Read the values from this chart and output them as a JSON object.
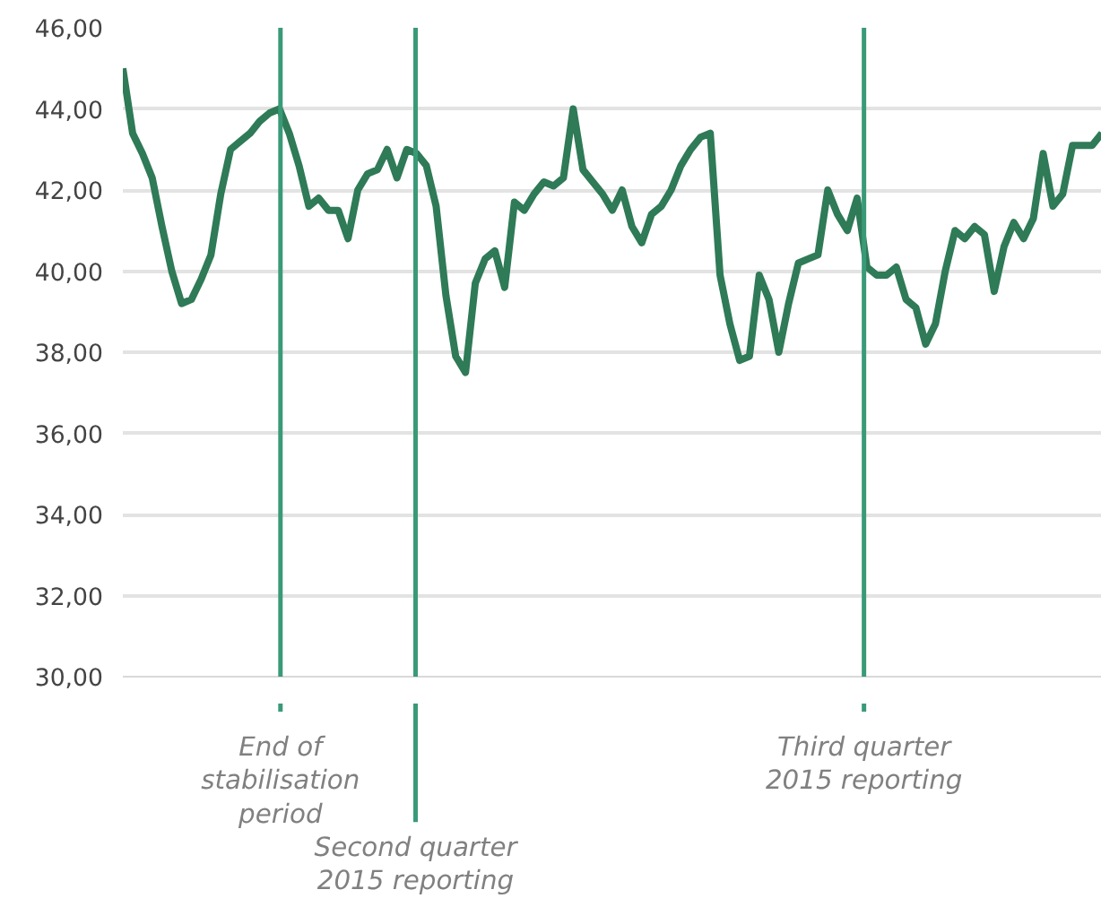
{
  "chart_data": {
    "type": "line",
    "categories": [
      null,
      null,
      null,
      null,
      null,
      null,
      null,
      null,
      null,
      null,
      null,
      null,
      null,
      null,
      null,
      null,
      null,
      null,
      null,
      null,
      null,
      null,
      null,
      null,
      null,
      null,
      null,
      null,
      null,
      null,
      null,
      null,
      null,
      null,
      null,
      null,
      null,
      null,
      null,
      null,
      null,
      null,
      null,
      null,
      null,
      null,
      null,
      null,
      null,
      null,
      null,
      null,
      null,
      null,
      null,
      null,
      null,
      null,
      null,
      null,
      null,
      null,
      null,
      null,
      null,
      null,
      null,
      null,
      null,
      null,
      null,
      null,
      null,
      null,
      null,
      null,
      null,
      null,
      null,
      null,
      null,
      null,
      null,
      null,
      null,
      null,
      null,
      null,
      null,
      null,
      null,
      null,
      null,
      null,
      null,
      null,
      null,
      null,
      null,
      null,
      null
    ],
    "series": [
      {
        "color": "#2f7a57",
        "values": [
          45.0,
          43.4,
          42.9,
          42.3,
          41.1,
          40.0,
          39.2,
          39.3,
          39.8,
          40.4,
          41.9,
          43.0,
          43.2,
          43.4,
          43.7,
          43.9,
          44.0,
          43.4,
          42.6,
          41.6,
          41.8,
          41.5,
          41.5,
          40.8,
          42.0,
          42.4,
          42.5,
          43.0,
          42.3,
          43.0,
          42.9,
          42.6,
          41.6,
          39.4,
          37.9,
          37.5,
          39.7,
          40.3,
          40.5,
          39.6,
          41.7,
          41.5,
          41.9,
          42.2,
          42.1,
          42.3,
          44.0,
          42.5,
          42.2,
          41.9,
          41.5,
          42.0,
          41.1,
          40.7,
          41.4,
          41.6,
          42.0,
          42.6,
          43.0,
          43.3,
          43.4,
          39.9,
          38.7,
          37.8,
          37.9,
          39.9,
          39.3,
          38.0,
          39.2,
          40.2,
          40.3,
          40.4,
          42.0,
          41.4,
          41.0,
          41.8,
          40.1,
          39.9,
          39.9,
          40.1,
          39.3,
          39.1,
          38.2,
          38.7,
          40.0,
          41.0,
          40.8,
          41.1,
          40.9,
          39.5,
          40.6,
          41.2,
          40.8,
          41.3,
          42.9,
          41.6,
          41.9,
          43.1,
          43.1,
          43.1,
          43.4
        ]
      }
    ],
    "ylim": [
      30,
      46
    ],
    "yticks": [
      {
        "value": 30,
        "label": "30,00"
      },
      {
        "value": 32,
        "label": "32,00"
      },
      {
        "value": 34,
        "label": "34,00"
      },
      {
        "value": 36,
        "label": "36,00"
      },
      {
        "value": 38,
        "label": "38,00"
      },
      {
        "value": 40,
        "label": "40,00"
      },
      {
        "value": 42,
        "label": "42,00"
      },
      {
        "value": 44,
        "label": "44,00"
      },
      {
        "value": 46,
        "label": "46,00"
      }
    ],
    "grid": "y",
    "tick_labels": "y",
    "marker": "none",
    "line_style": "solid",
    "ref_lines": [
      {
        "axis": "x",
        "label": "End of stabilisation period",
        "color": "#3a9a78"
      },
      {
        "axis": "x",
        "label": "Second quarter 2015 reporting",
        "color": "#3a9a78"
      },
      {
        "axis": "x",
        "label": "Third quarter 2015 reporting",
        "color": "#3a9a78"
      }
    ]
  }
}
